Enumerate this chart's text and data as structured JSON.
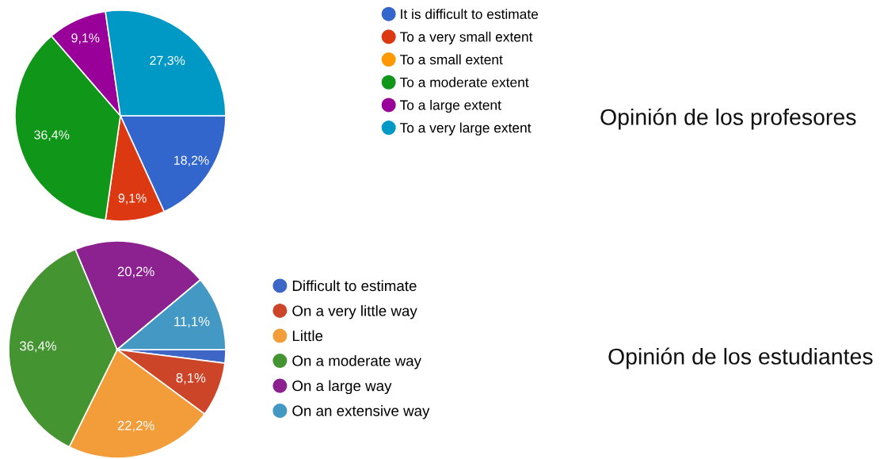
{
  "chart_data": [
    {
      "type": "pie",
      "title": "Opinión de los profesores",
      "categories": [
        "It is difficult to estimate",
        "To a very small extent",
        "To a small extent",
        "To a moderate extent",
        "To a large extent",
        "To a very large extent"
      ],
      "values": [
        18.2,
        9.1,
        0,
        36.4,
        9.1,
        27.3
      ],
      "colors": [
        "#3366cc",
        "#dc3912",
        "#ff9900",
        "#109618",
        "#990099",
        "#0099c6"
      ],
      "value_labels": [
        "18,2%",
        "9,1%",
        null,
        "36,4%",
        "9,1%",
        "27,3%"
      ],
      "legend": "right"
    },
    {
      "type": "pie",
      "title": "Opinión de los estudiantes",
      "categories": [
        "Difficult to estimate",
        "On a very little way",
        "Little",
        "On a moderate way",
        "On a large way",
        "On an extensive way"
      ],
      "values": [
        2.0,
        8.1,
        22.2,
        36.4,
        20.2,
        11.1
      ],
      "colors": [
        "#3e66c6",
        "#cc4529",
        "#f39d3a",
        "#459432",
        "#8c2290",
        "#4398c4"
      ],
      "value_labels": [
        null,
        "8,1%",
        "22,2%",
        "36,4%",
        "20,2%",
        "11,1%"
      ],
      "legend": "right"
    }
  ]
}
